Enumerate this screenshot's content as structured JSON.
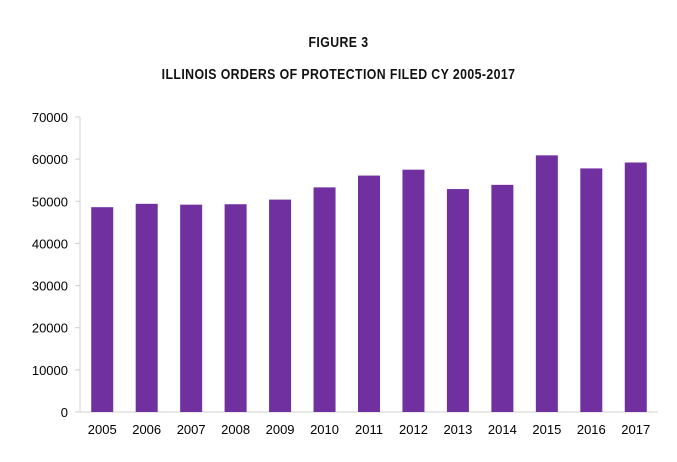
{
  "chart_data": {
    "type": "bar",
    "title": "FIGURE 3",
    "subtitle": "ILLINOIS ORDERS OF PROTECTION FILED CY 2005-2017",
    "xlabel": "",
    "ylabel": "",
    "categories": [
      "2005",
      "2006",
      "2007",
      "2008",
      "2009",
      "2010",
      "2011",
      "2012",
      "2013",
      "2014",
      "2015",
      "2016",
      "2017"
    ],
    "values": [
      48600,
      49400,
      49200,
      49300,
      50400,
      53300,
      56100,
      57500,
      52900,
      53900,
      60900,
      57800,
      59200
    ],
    "ylim": [
      0,
      70000
    ],
    "yticks": [
      "0",
      "10000",
      "20000",
      "30000",
      "40000",
      "50000",
      "60000",
      "70000"
    ],
    "grid": false,
    "bar_color": "#7030A0"
  }
}
